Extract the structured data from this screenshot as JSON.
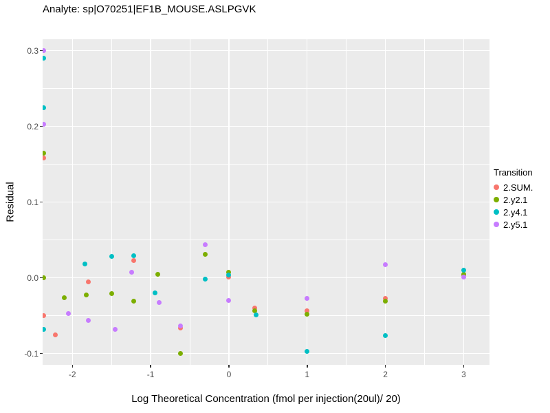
{
  "title": "Analyte: sp|O70251|EF1B_MOUSE.ASLPGVK",
  "axes": {
    "x_label": "Log Theoretical Concentration (fmol per injection(20ul)/ 20)",
    "y_label": "Residual"
  },
  "legend": {
    "title": "Transition",
    "items": [
      "2.SUM.",
      "2.y2.1",
      "2.y4.1",
      "2.y5.1"
    ]
  },
  "colors": {
    "panel_bg": "#EBEBEB",
    "grid": "#FFFFFF",
    "tick_text": "#4D4D4D",
    "tick_mark": "#333333",
    "series_red": "#F8766D",
    "series_green": "#7CAE00",
    "series_teal": "#00BFC4",
    "series_purple": "#C77CFF"
  },
  "chart_data": {
    "type": "scatter",
    "title": "Analyte: sp|O70251|EF1B_MOUSE.ASLPGVK",
    "xlabel": "Log Theoretical Concentration (fmol per injection(20ul)/ 20)",
    "ylabel": "Residual",
    "xlim": [
      -2.38,
      3.33
    ],
    "ylim": [
      -0.115,
      0.315
    ],
    "x_ticks": [
      {
        "v": -2,
        "label": "-2"
      },
      {
        "v": -1,
        "label": "-1"
      },
      {
        "v": 0,
        "label": "0"
      },
      {
        "v": 1,
        "label": "1"
      },
      {
        "v": 2,
        "label": "2"
      },
      {
        "v": 3,
        "label": "3"
      }
    ],
    "y_ticks": [
      {
        "v": -0.1,
        "label": "-0.1"
      },
      {
        "v": 0,
        "label": "0.0"
      },
      {
        "v": 0.1,
        "label": "0.1"
      },
      {
        "v": 0.2,
        "label": "0.2"
      },
      {
        "v": 0.3,
        "label": "0.3"
      }
    ],
    "grid": {
      "x_minor": [
        -1.5,
        -0.5,
        0.5,
        1.5,
        2.5
      ],
      "y_minor": [
        -0.05,
        0.05,
        0.15,
        0.25
      ]
    },
    "legend_title": "Transition",
    "legend_position": "right",
    "series": [
      {
        "name": "2.SUM.",
        "color": "#F8766D",
        "points": [
          [
            -2.37,
            0.158
          ],
          [
            -2.37,
            -0.05
          ],
          [
            -2.22,
            -0.075
          ],
          [
            -1.8,
            -0.005
          ],
          [
            -1.22,
            0.023
          ],
          [
            -0.62,
            -0.066
          ],
          [
            0.0,
            0.001
          ],
          [
            0.33,
            -0.04
          ],
          [
            1.0,
            -0.044
          ],
          [
            2.0,
            -0.027
          ],
          [
            3.0,
            0.004
          ]
        ]
      },
      {
        "name": "2.y2.1",
        "color": "#7CAE00",
        "points": [
          [
            -2.37,
            0.165
          ],
          [
            -2.37,
            0.0
          ],
          [
            -2.1,
            -0.026
          ],
          [
            -1.82,
            -0.023
          ],
          [
            -1.5,
            -0.021
          ],
          [
            -1.22,
            -0.031
          ],
          [
            -0.91,
            0.005
          ],
          [
            -0.62,
            -0.1
          ],
          [
            -0.3,
            0.031
          ],
          [
            0.0,
            0.007
          ],
          [
            0.33,
            -0.044
          ],
          [
            1.0,
            -0.048
          ],
          [
            2.0,
            -0.031
          ],
          [
            3.0,
            0.005
          ]
        ]
      },
      {
        "name": "2.y4.1",
        "color": "#00BFC4",
        "points": [
          [
            -2.37,
            0.29
          ],
          [
            -2.37,
            0.225
          ],
          [
            -2.37,
            -0.068
          ],
          [
            -1.84,
            0.018
          ],
          [
            -1.5,
            0.028
          ],
          [
            -1.22,
            0.029
          ],
          [
            -0.94,
            -0.02
          ],
          [
            -0.3,
            -0.002
          ],
          [
            0.0,
            0.004
          ],
          [
            0.35,
            -0.049
          ],
          [
            1.0,
            -0.097
          ],
          [
            2.0,
            -0.076
          ],
          [
            3.0,
            0.01
          ]
        ]
      },
      {
        "name": "2.y5.1",
        "color": "#C77CFF",
        "points": [
          [
            -2.37,
            0.3
          ],
          [
            -2.37,
            0.203
          ],
          [
            -2.05,
            -0.047
          ],
          [
            -1.8,
            -0.056
          ],
          [
            -1.45,
            -0.068
          ],
          [
            -1.24,
            0.007
          ],
          [
            -0.89,
            -0.033
          ],
          [
            -0.62,
            -0.064
          ],
          [
            -0.3,
            0.044
          ],
          [
            0.0,
            -0.03
          ],
          [
            1.0,
            -0.027
          ],
          [
            2.0,
            0.017
          ],
          [
            3.0,
            0.001
          ]
        ]
      }
    ]
  }
}
